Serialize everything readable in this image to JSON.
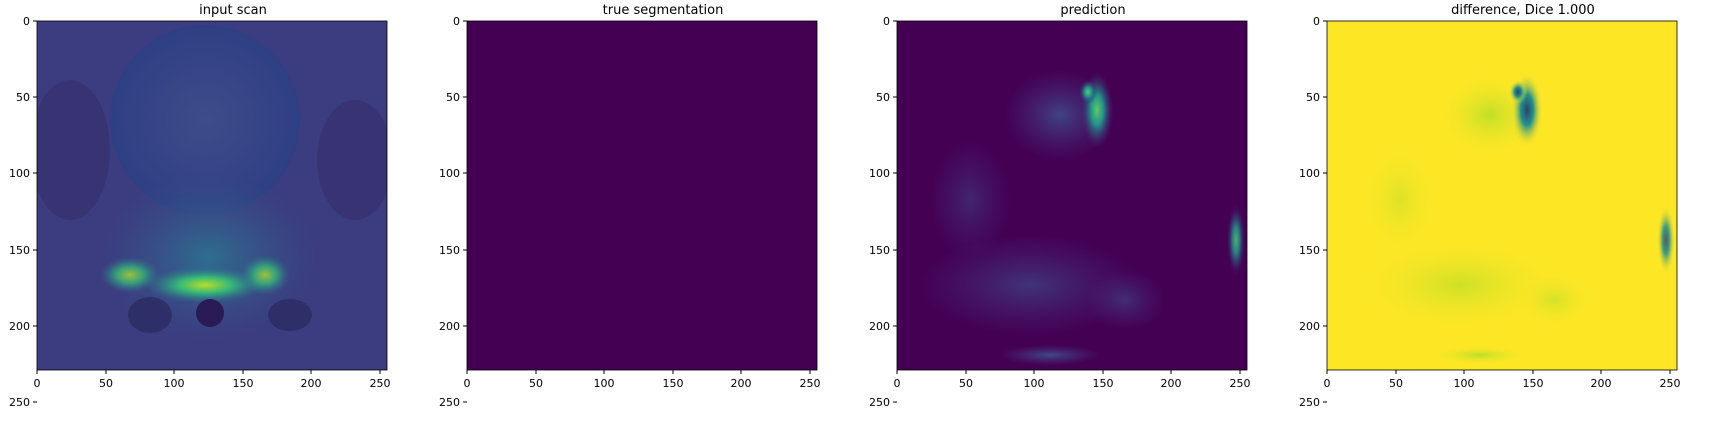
{
  "panels": [
    {
      "title": "input scan",
      "image": "mri-pelvis-slice",
      "x_ticks": [
        "0",
        "50",
        "100",
        "150",
        "200",
        "250"
      ],
      "y_ticks": [
        "0",
        "50",
        "100",
        "150",
        "200",
        "250"
      ]
    },
    {
      "title": "true segmentation",
      "image": "empty-mask",
      "x_ticks": [
        "0",
        "50",
        "100",
        "150",
        "200",
        "250"
      ],
      "y_ticks": [
        "0",
        "50",
        "100",
        "150",
        "200",
        "250"
      ]
    },
    {
      "title": "prediction",
      "image": "predicted-mask",
      "x_ticks": [
        "0",
        "50",
        "100",
        "150",
        "200",
        "250"
      ],
      "y_ticks": [
        "0",
        "50",
        "100",
        "150",
        "200",
        "250"
      ]
    },
    {
      "title": "difference, Dice 1.000",
      "image": "difference-map",
      "x_ticks": [
        "0",
        "50",
        "100",
        "150",
        "200",
        "250"
      ],
      "y_ticks": [
        "0",
        "50",
        "100",
        "150",
        "200",
        "250"
      ]
    }
  ],
  "colors": {
    "viridis_low": "#440154",
    "viridis_dark": "#3b2a6e",
    "viridis_mid": "#21918c",
    "viridis_green": "#5ec962",
    "viridis_high": "#fde725"
  }
}
